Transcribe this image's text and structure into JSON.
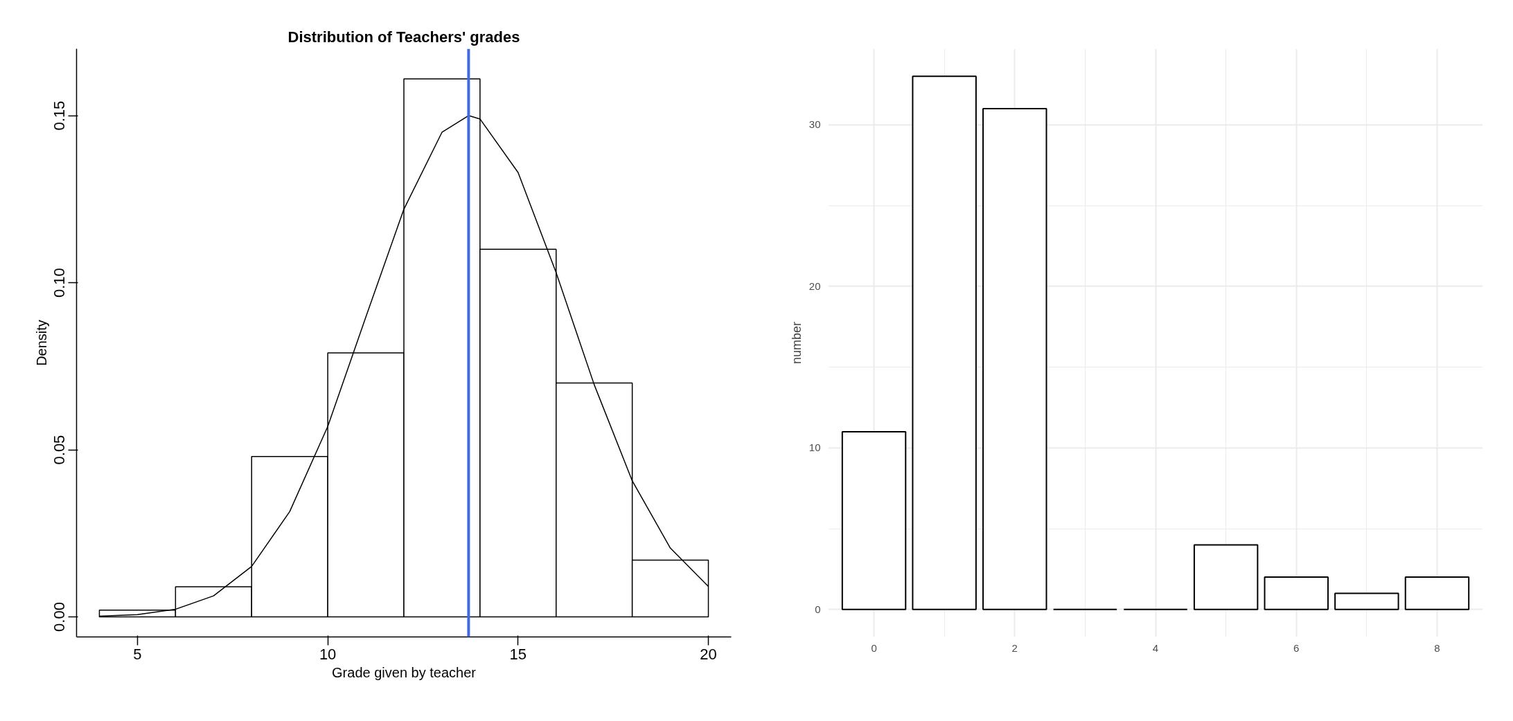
{
  "chart_data": [
    {
      "type": "histogram",
      "title": "Distribution of Teachers' grades",
      "xlabel": "Grade given by teacher",
      "ylabel": "Density",
      "xlim": [
        3.4,
        20.6
      ],
      "xticks": [
        5,
        10,
        15,
        20
      ],
      "ylim": [
        -0.006,
        0.17
      ],
      "yticks": [
        {
          "value": 0,
          "label": "0.00"
        },
        0.05,
        {
          "value": 0.1,
          "label": "0.10"
        },
        0.15
      ],
      "grid": false,
      "series": [
        {
          "type": "histogram",
          "color": "#ffffff",
          "bins": [
            4,
            6,
            8,
            10,
            12,
            14,
            16,
            18,
            20
          ],
          "values": [
            0.002,
            0.009,
            0.048,
            0.079,
            0.161,
            0.11,
            0.07,
            0.017
          ]
        },
        {
          "type": "line",
          "color": "#000000",
          "x": [
            4,
            5,
            6,
            7,
            8,
            9,
            10,
            11,
            12,
            13,
            13.7,
            14,
            15,
            16,
            17,
            18,
            19,
            20
          ],
          "values": [
            0.0002,
            0.0007,
            0.0023,
            0.0063,
            0.0151,
            0.0315,
            0.057,
            0.0897,
            0.122,
            0.145,
            0.15,
            0.149,
            0.133,
            0.103,
            0.0695,
            0.0407,
            0.0206,
            0.0091
          ]
        }
      ],
      "ref_lines": [
        {
          "axis": "x",
          "value": 13.7,
          "color": "#4169e1"
        }
      ]
    },
    {
      "type": "bar",
      "ylabel": "number",
      "x": [
        0,
        1,
        2,
        3,
        4,
        5,
        6,
        7,
        8
      ],
      "values": [
        11,
        33,
        31,
        0,
        0,
        4,
        2,
        1,
        2
      ],
      "colors": [
        "#ffffff",
        "#ffffff",
        "#ffffff",
        "#000000",
        "#000000",
        "#ffffff",
        "#ffffff",
        "#ffffff",
        "#ffffff"
      ],
      "xlim": [
        -0.65,
        8.65
      ],
      "xticks": [
        0,
        2,
        4,
        6,
        8
      ],
      "ylim": [
        -1.7,
        34.7
      ],
      "yticks": [
        0,
        10,
        20,
        30
      ],
      "grid": true
    }
  ]
}
